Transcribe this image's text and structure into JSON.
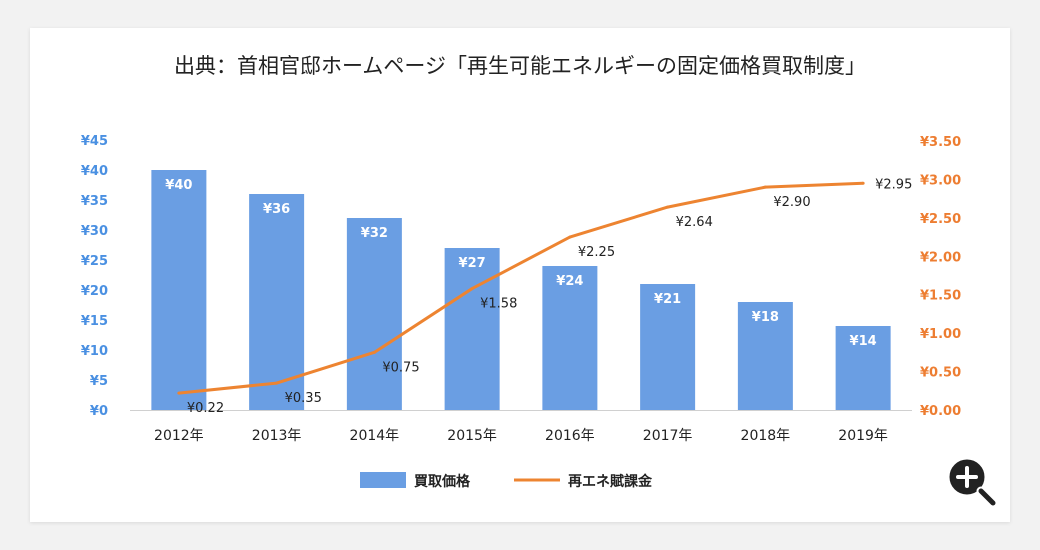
{
  "title": "出典：首相官邸ホームページ「再生可能エネルギーの固定価格買取制度」",
  "zoom_button": {
    "icon": "zoom-in-icon"
  },
  "colors": {
    "bar": "#6a9ee3",
    "line": "#ed8431",
    "left_axis": "#4a90e2",
    "right_axis": "#ed7d31"
  },
  "chart_data": {
    "type": "bar",
    "categories": [
      "2012年",
      "2013年",
      "2014年",
      "2015年",
      "2016年",
      "2017年",
      "2018年",
      "2019年"
    ],
    "series": [
      {
        "name": "買取価格",
        "type": "bar",
        "axis": "left",
        "values": [
          40,
          36,
          32,
          27,
          24,
          21,
          18,
          14
        ],
        "labels": [
          "¥40",
          "¥36",
          "¥32",
          "¥27",
          "¥24",
          "¥21",
          "¥18",
          "¥14"
        ]
      },
      {
        "name": "再エネ賦課金",
        "type": "line",
        "axis": "right",
        "values": [
          0.22,
          0.35,
          0.75,
          1.58,
          2.25,
          2.64,
          2.9,
          2.95
        ],
        "labels": [
          "¥0.22",
          "¥0.35",
          "¥0.75",
          "¥1.58",
          "¥2.25",
          "¥2.64",
          "¥2.90",
          "¥2.95"
        ]
      }
    ],
    "y_left": {
      "range": [
        0,
        45
      ],
      "ticks": [
        "¥0",
        "¥5",
        "¥10",
        "¥15",
        "¥20",
        "¥25",
        "¥30",
        "¥35",
        "¥40",
        "¥45"
      ]
    },
    "y_right": {
      "range": [
        0,
        3.5
      ],
      "ticks": [
        "¥0.00",
        "¥0.50",
        "¥1.00",
        "¥1.50",
        "¥2.00",
        "¥2.50",
        "¥3.00",
        "¥3.50"
      ]
    },
    "legend_position": "bottom",
    "grid": false
  }
}
